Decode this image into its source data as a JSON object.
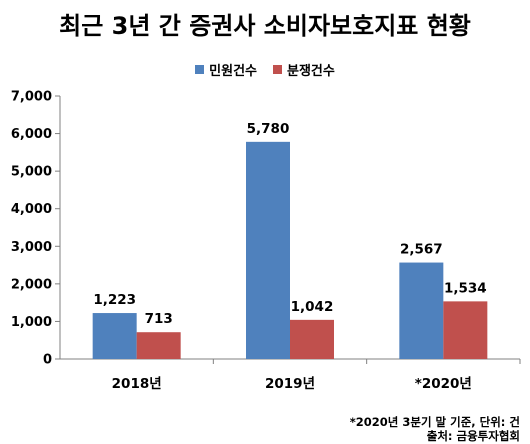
{
  "chart_data": {
    "type": "bar",
    "title": "최근 3년 간 증권사 소비자보호지표 현황",
    "categories": [
      "2018년",
      "2019년",
      "*2020년"
    ],
    "series": [
      {
        "name": "민원건수",
        "values": [
          1223,
          5780,
          2567
        ],
        "labels": [
          "1,223",
          "5,780",
          "2,567"
        ],
        "color": "#4f81bd"
      },
      {
        "name": "분쟁건수",
        "values": [
          713,
          1042,
          1534
        ],
        "labels": [
          "713",
          "1,042",
          "1,534"
        ],
        "color": "#c0504d"
      }
    ],
    "ylim": [
      0,
      7000
    ],
    "yticks": [
      0,
      1000,
      2000,
      3000,
      4000,
      5000,
      6000,
      7000
    ],
    "ytick_labels": [
      "0",
      "1,000",
      "2,000",
      "3,000",
      "4,000",
      "5,000",
      "6,000",
      "7,000"
    ],
    "legend_position": "top-center",
    "grid": false
  },
  "footnote": "*2020년 3분기 말 기준, 단위: 건",
  "source": "출처: 금융투자협회"
}
